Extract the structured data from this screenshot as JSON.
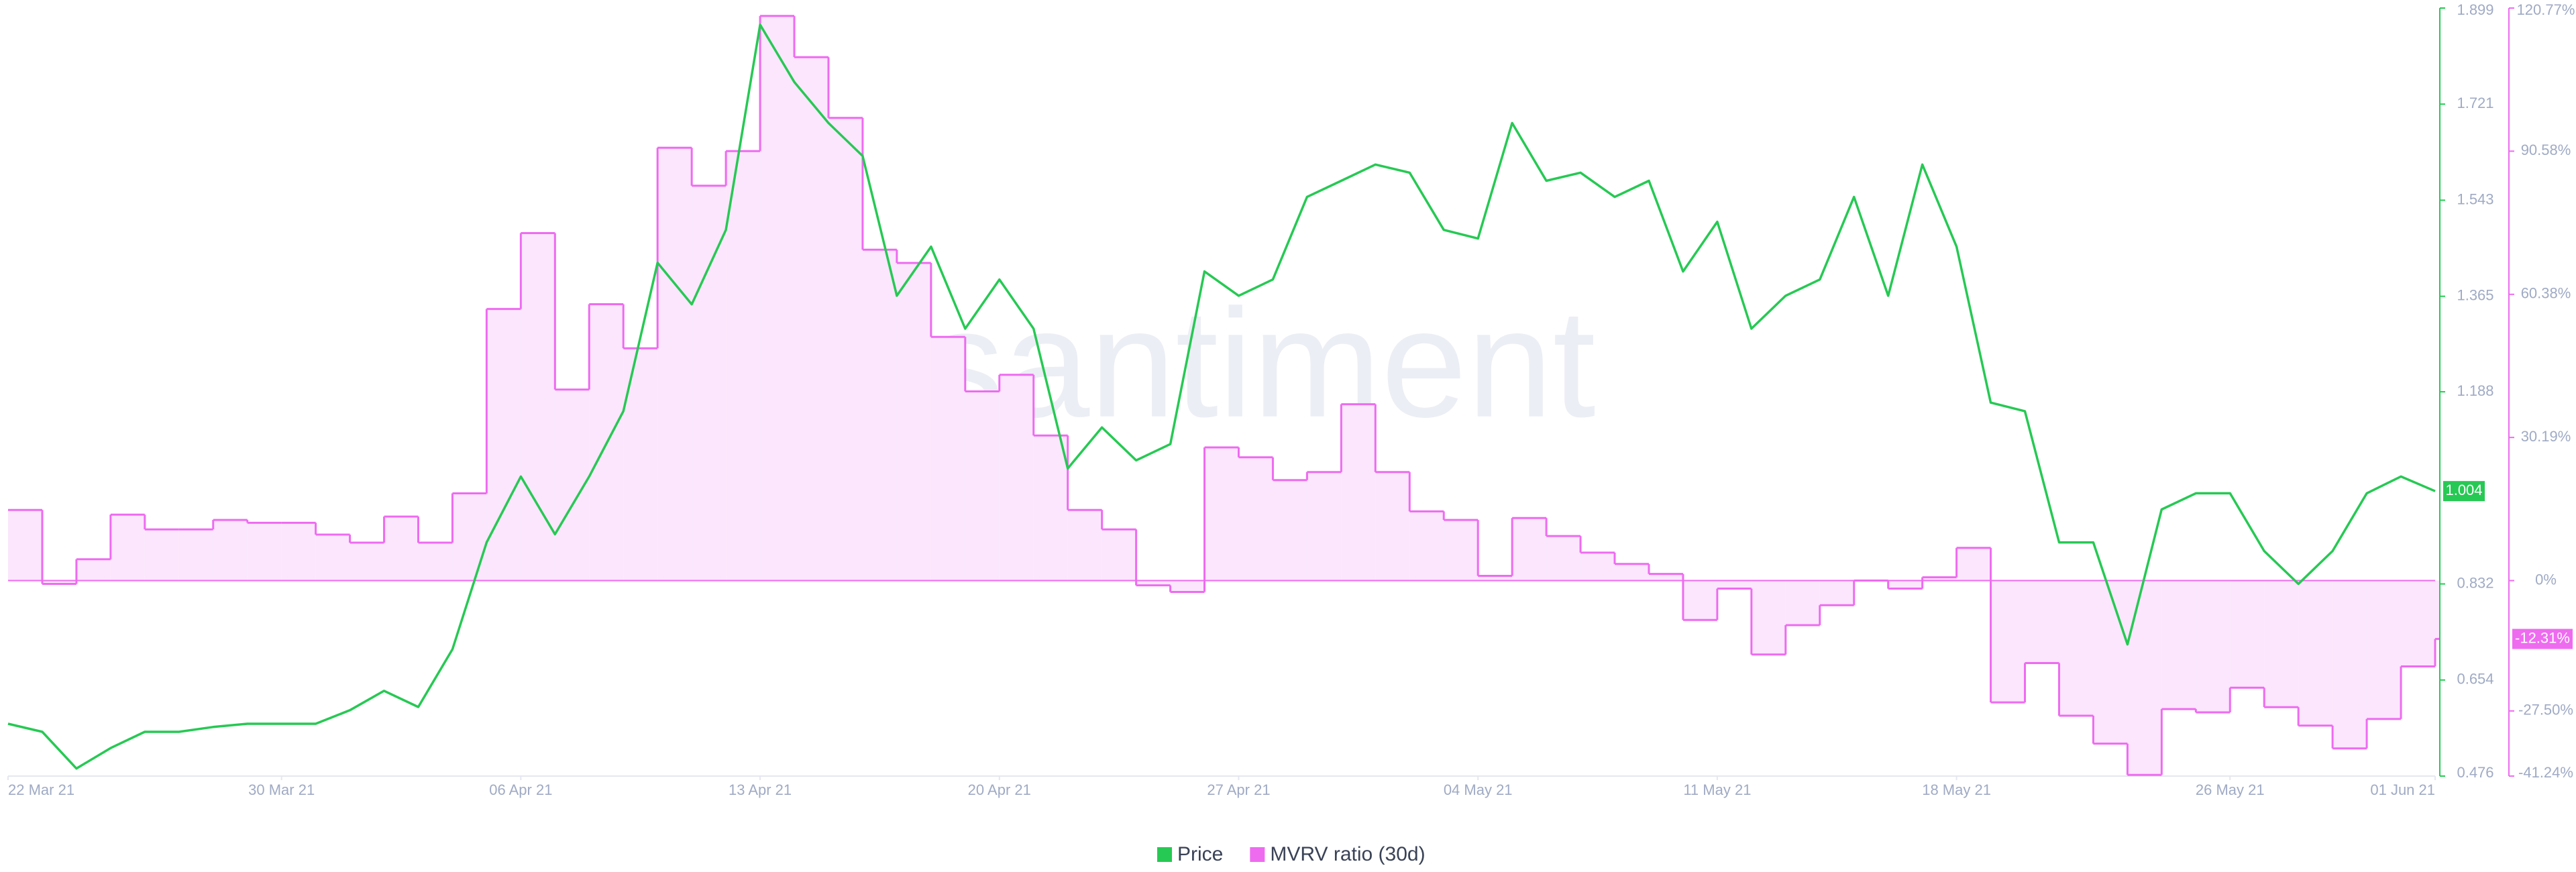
{
  "chart_data": {
    "type": "line",
    "watermark": "santiment",
    "x": [
      "2021-03-22",
      "2021-03-23",
      "2021-03-24",
      "2021-03-25",
      "2021-03-26",
      "2021-03-27",
      "2021-03-28",
      "2021-03-29",
      "2021-03-30",
      "2021-03-31",
      "2021-04-01",
      "2021-04-02",
      "2021-04-03",
      "2021-04-04",
      "2021-04-05",
      "2021-04-06",
      "2021-04-07",
      "2021-04-08",
      "2021-04-09",
      "2021-04-10",
      "2021-04-11",
      "2021-04-12",
      "2021-04-13",
      "2021-04-14",
      "2021-04-15",
      "2021-04-16",
      "2021-04-17",
      "2021-04-18",
      "2021-04-19",
      "2021-04-20",
      "2021-04-21",
      "2021-04-22",
      "2021-04-23",
      "2021-04-24",
      "2021-04-25",
      "2021-04-26",
      "2021-04-27",
      "2021-04-28",
      "2021-04-29",
      "2021-04-30",
      "2021-05-01",
      "2021-05-02",
      "2021-05-03",
      "2021-05-04",
      "2021-05-05",
      "2021-05-06",
      "2021-05-07",
      "2021-05-08",
      "2021-05-09",
      "2021-05-10",
      "2021-05-11",
      "2021-05-12",
      "2021-05-13",
      "2021-05-14",
      "2021-05-15",
      "2021-05-16",
      "2021-05-17",
      "2021-05-18",
      "2021-05-19",
      "2021-05-20",
      "2021-05-21",
      "2021-05-22",
      "2021-05-23",
      "2021-05-24",
      "2021-05-25",
      "2021-05-26",
      "2021-05-27",
      "2021-05-28",
      "2021-05-29",
      "2021-05-30",
      "2021-05-31",
      "2021-06-01"
    ],
    "xlim": [
      "2021-03-22",
      "2021-06-01"
    ],
    "xticks": [
      {
        "value": "2021-03-22",
        "label": "22 Mar 21"
      },
      {
        "value": "2021-03-30",
        "label": "30 Mar 21"
      },
      {
        "value": "2021-04-06",
        "label": "06 Apr 21"
      },
      {
        "value": "2021-04-13",
        "label": "13 Apr 21"
      },
      {
        "value": "2021-04-20",
        "label": "20 Apr 21"
      },
      {
        "value": "2021-04-27",
        "label": "27 Apr 21"
      },
      {
        "value": "2021-05-04",
        "label": "04 May 21"
      },
      {
        "value": "2021-05-11",
        "label": "11 May 21"
      },
      {
        "value": "2021-05-18",
        "label": "18 May 21"
      },
      {
        "value": "2021-05-26",
        "label": "26 May 21"
      },
      {
        "value": "2021-06-01",
        "label": "01 Jun 21"
      }
    ],
    "ylim": [
      0.476,
      1.899
    ],
    "yticks": [
      0.476,
      0.654,
      0.832,
      1.188,
      1.365,
      1.543,
      1.721,
      1.899
    ],
    "y2lim": [
      -41.24,
      120.77
    ],
    "y2ticks": [
      {
        "value": -41.24,
        "label": "-41.24%"
      },
      {
        "value": -27.5,
        "label": "-27.50%"
      },
      {
        "value": 0,
        "label": "0%"
      },
      {
        "value": 30.19,
        "label": "30.19%"
      },
      {
        "value": 60.38,
        "label": "60.38%"
      },
      {
        "value": 90.58,
        "label": "90.58%"
      },
      {
        "value": 120.77,
        "label": "120.77%"
      }
    ],
    "series": [
      {
        "name": "Price",
        "color": "#26c953",
        "values": [
          0.573,
          0.558,
          0.49,
          0.528,
          0.558,
          0.558,
          0.567,
          0.573,
          0.573,
          0.573,
          0.598,
          0.634,
          0.604,
          0.711,
          0.909,
          1.031,
          0.924,
          1.031,
          1.152,
          1.427,
          1.35,
          1.488,
          1.868,
          1.762,
          1.686,
          1.625,
          1.366,
          1.457,
          1.305,
          1.396,
          1.305,
          1.046,
          1.122,
          1.061,
          1.091,
          1.411,
          1.366,
          1.396,
          1.549,
          1.579,
          1.609,
          1.594,
          1.488,
          1.472,
          1.686,
          1.579,
          1.594,
          1.549,
          1.579,
          1.411,
          1.503,
          1.305,
          1.366,
          1.396,
          1.549,
          1.366,
          1.609,
          1.457,
          1.168,
          1.152,
          0.909,
          0.909,
          0.72,
          0.97,
          1.0,
          1.0,
          0.893,
          0.832,
          0.893,
          1.0,
          1.031,
          1.004
        ]
      },
      {
        "name": "MVRV ratio (30d)",
        "color": "#ee6bf0",
        "axis": "y2",
        "values": [
          14.9,
          -0.7,
          4.5,
          13.9,
          10.8,
          10.8,
          12.8,
          12.2,
          12.2,
          9.7,
          8.0,
          13.5,
          8.0,
          18.4,
          57.3,
          73.3,
          40.3,
          58.3,
          49.0,
          91.3,
          83.3,
          90.6,
          119.1,
          110.4,
          97.6,
          69.8,
          67.0,
          51.4,
          39.9,
          43.4,
          30.6,
          14.9,
          10.8,
          -1.0,
          -2.4,
          28.1,
          26.0,
          21.2,
          22.9,
          37.2,
          22.9,
          14.6,
          12.8,
          1.0,
          13.2,
          9.4,
          5.9,
          3.5,
          1.4,
          -8.3,
          -1.7,
          -15.6,
          -9.4,
          -5.2,
          0,
          -1.7,
          0.7,
          6.9,
          -25.7,
          -17.4,
          -28.5,
          -34.4,
          -41.0,
          -27.1,
          -27.8,
          -22.6,
          -26.7,
          -30.6,
          -35.4,
          -29.2,
          -18.1,
          -12.31
        ],
        "value_labels_last": "-12.31%"
      }
    ]
  }
}
